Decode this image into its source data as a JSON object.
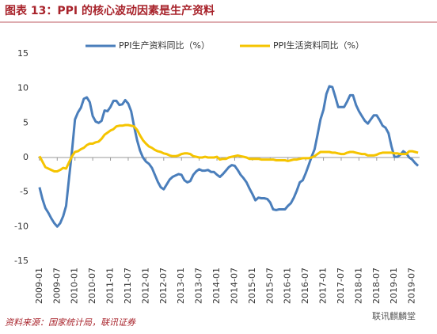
{
  "chart_data": {
    "type": "line",
    "title": "图表 13：PPI 的核心波动因素是生产资料",
    "source": "资料来源：国家统计局，联讯证券",
    "watermark": "联讯麒麟堂",
    "categories": [
      "2009-01",
      null,
      null,
      null,
      null,
      null,
      "2009-07",
      null,
      null,
      null,
      null,
      null,
      "2010-01",
      null,
      null,
      null,
      null,
      null,
      "2010-07",
      null,
      null,
      null,
      null,
      null,
      "2011-01",
      null,
      null,
      null,
      null,
      null,
      "2011-07",
      null,
      null,
      null,
      null,
      null,
      "2012-01",
      null,
      null,
      null,
      null,
      null,
      "2012-07",
      null,
      null,
      null,
      null,
      null,
      "2013-01",
      null,
      null,
      null,
      null,
      null,
      "2013-07",
      null,
      null,
      null,
      null,
      null,
      "2014-01",
      null,
      null,
      null,
      null,
      null,
      "2014-07",
      null,
      null,
      null,
      null,
      null,
      "2015-01",
      null,
      null,
      null,
      null,
      null,
      "2015-07",
      null,
      null,
      null,
      null,
      null,
      "2016-01",
      null,
      null,
      null,
      null,
      null,
      "2016-07",
      null,
      null,
      null,
      null,
      null,
      "2017-01",
      null,
      null,
      null,
      null,
      null,
      "2017-07",
      null,
      null,
      null,
      null,
      null,
      "2018-01",
      null,
      null,
      null,
      null,
      null,
      "2018-07",
      null,
      null,
      null,
      null,
      null,
      "2019-01",
      null,
      null,
      null,
      null,
      null,
      "2019-07",
      null,
      null
    ],
    "series": [
      {
        "name": "PPI生产资料同比（%）",
        "color": "#4a7ebb",
        "values": [
          -4.3,
          -6,
          -7.3,
          -8,
          -8.8,
          -9.5,
          -10,
          -9.5,
          -8.5,
          -7,
          -3,
          1,
          5.5,
          6.5,
          7.2,
          8.5,
          8.7,
          8,
          6,
          5.2,
          5,
          5.3,
          6.8,
          6.7,
          7.3,
          8.2,
          8.2,
          7.6,
          7.7,
          8.3,
          7.8,
          6.7,
          4.5,
          2.5,
          1,
          0,
          -0.6,
          -0.9,
          -1.5,
          -2.5,
          -3.5,
          -4.3,
          -4.6,
          -3.9,
          -3.2,
          -2.8,
          -2.6,
          -2.4,
          -2.5,
          -3.3,
          -3.6,
          -3.4,
          -2.5,
          -2,
          -1.7,
          -1.9,
          -1.9,
          -1.8,
          -2.1,
          -2.1,
          -2.5,
          -2.8,
          -2.4,
          -1.9,
          -1.4,
          -1.1,
          -1.2,
          -1.8,
          -2.5,
          -3,
          -3.6,
          -4.5,
          -5.3,
          -6.2,
          -5.8,
          -5.9,
          -5.9,
          -6,
          -6.5,
          -7.5,
          -7.6,
          -7.5,
          -7.5,
          -7.5,
          -7,
          -6.6,
          -5.8,
          -4.8,
          -3.6,
          -3.3,
          -2.3,
          -1.1,
          0.1,
          1.2,
          3.3,
          5.5,
          6.9,
          9.2,
          10.3,
          10.2,
          8.8,
          7.3,
          7.3,
          7.3,
          8.1,
          9,
          9,
          7.6,
          6.7,
          6,
          5.3,
          4.9,
          5.5,
          6.1,
          6.1,
          5.4,
          4.6,
          4.3,
          3.5,
          1.6,
          0.1,
          0.1,
          0.4,
          0.9,
          0.6,
          0,
          -0.3,
          -0.8,
          -1.2
        ]
      },
      {
        "name": "PPI生活资料同比（%）",
        "color": "#f5c400",
        "values": [
          0.2,
          -0.6,
          -1.4,
          -1.6,
          -1.8,
          -2,
          -2,
          -1.8,
          -1.5,
          -1.6,
          -0.7,
          0.2,
          0.8,
          0.9,
          1.2,
          1.4,
          1.8,
          2,
          2,
          2.2,
          2.3,
          2.7,
          3.3,
          3.6,
          3.9,
          4.1,
          4.5,
          4.6,
          4.6,
          4.7,
          4.7,
          4.6,
          4.5,
          4,
          3.2,
          2.5,
          2,
          1.6,
          1.4,
          1.1,
          0.9,
          0.8,
          0.6,
          0.5,
          0.3,
          0.2,
          0.2,
          0.3,
          0.5,
          0.6,
          0.6,
          0.5,
          0.2,
          0.1,
          0,
          0,
          0.1,
          0,
          0,
          0,
          0.1,
          -0.3,
          -0.2,
          -0.2,
          0,
          0.1,
          0.2,
          0.3,
          0.2,
          0.1,
          0,
          -0.2,
          -0.2,
          -0.2,
          -0.2,
          -0.3,
          -0.3,
          -0.3,
          -0.3,
          -0.3,
          -0.4,
          -0.4,
          -0.4,
          -0.4,
          -0.5,
          -0.4,
          -0.3,
          -0.3,
          -0.2,
          -0.1,
          -0.1,
          -0.1,
          0,
          0.2,
          0.5,
          0.8,
          0.8,
          0.8,
          0.8,
          0.7,
          0.7,
          0.6,
          0.5,
          0.5,
          0.7,
          0.8,
          0.8,
          0.7,
          0.6,
          0.5,
          0.5,
          0.3,
          0.3,
          0.3,
          0.4,
          0.6,
          0.7,
          0.7,
          0.7,
          0.7,
          0.6,
          0.6,
          0.5,
          0.5,
          0.5,
          0.9,
          0.9,
          0.8,
          0.7
        ]
      }
    ],
    "ylim": [
      -15,
      15
    ],
    "yticks": [
      -15,
      -10,
      -5,
      0,
      5,
      10,
      15
    ],
    "grid": false
  }
}
